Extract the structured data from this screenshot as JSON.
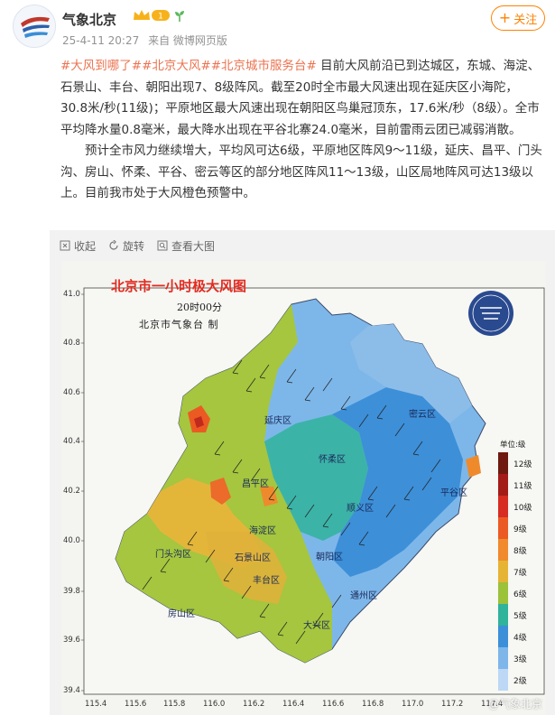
{
  "post": {
    "author": "气象北京",
    "badge_level": "1",
    "timestamp": "25-4-11 20:27",
    "source": "来自 微博网页版",
    "follow_label": "关注",
    "tags": [
      "#大风到哪了#",
      "#北京大风#",
      "#北京城市服务台#"
    ],
    "paragraph1_text": "目前大风前沿已到达城区，东城、海淀、石景山、丰台、朝阳出现7、8级阵风。截至20时全市最大风速出现在延庆区小海陀， 30.8米/秒(11级)；平原地区最大风速出现在朝阳区鸟巢冠顶东，17.6米/秒（8级）。全市平均降水量0.8毫米，最大降水出现在平谷北寨24.0毫米，目前雷雨云团已减弱消散。",
    "paragraph2": "预计全市风力继续增大，平均风可达6级，平原地区阵风9～11级，延庆、昌平、门头沟、房山、怀柔、平谷、密云等区的部分地区阵风11～13级，山区局地阵风可达13级以上。目前我市处于大风橙色预警中。"
  },
  "toolbar": {
    "collapse": "收起",
    "rotate": "旋转",
    "view_large": "查看大图"
  },
  "map": {
    "title": "北京市一小时极大风图",
    "time": "20时00分",
    "issuer": "北京市气象台  制",
    "logo_text": "北京市气象台",
    "watermark": "@气象北京",
    "legend_title": "单位:级",
    "legend": [
      {
        "label": "12级",
        "color": "#6e1a10"
      },
      {
        "label": "11级",
        "color": "#a31c18"
      },
      {
        "label": "10级",
        "color": "#d62c22"
      },
      {
        "label": "9级",
        "color": "#ec5a23"
      },
      {
        "label": "8级",
        "color": "#f08a2c"
      },
      {
        "label": "7级",
        "color": "#e6b434"
      },
      {
        "label": "6级",
        "color": "#9cc23a"
      },
      {
        "label": "5级",
        "color": "#2fb39a"
      },
      {
        "label": "4级",
        "color": "#3b8fd8"
      },
      {
        "label": "3级",
        "color": "#7eb6ea"
      },
      {
        "label": "2级",
        "color": "#bcd8f4"
      }
    ],
    "districts": [
      {
        "id": "yanqing",
        "name": "延庆区"
      },
      {
        "id": "huairou",
        "name": "怀柔区"
      },
      {
        "id": "miyun",
        "name": "密云区"
      },
      {
        "id": "pinggu",
        "name": "平谷区"
      },
      {
        "id": "changping",
        "name": "昌平区"
      },
      {
        "id": "shunyi",
        "name": "顺义区"
      },
      {
        "id": "mentougou",
        "name": "门头沟区"
      },
      {
        "id": "haidian",
        "name": "海淀区"
      },
      {
        "id": "shijingshan",
        "name": "石景山区"
      },
      {
        "id": "chaoyang",
        "name": "朝阳区"
      },
      {
        "id": "fengtai",
        "name": "丰台区"
      },
      {
        "id": "tongzhou",
        "name": "通州区"
      },
      {
        "id": "fangshan",
        "name": "房山区"
      },
      {
        "id": "daxing",
        "name": "大兴区"
      }
    ],
    "y_ticks": [
      "41.0",
      "40.8",
      "40.6",
      "40.4",
      "40.2",
      "40.0",
      "39.8",
      "39.6",
      "39.4"
    ],
    "x_ticks": [
      "115.4",
      "115.6",
      "115.8",
      "116.0",
      "116.2",
      "116.4",
      "116.6",
      "116.8",
      "117.0",
      "117.2",
      "117.4"
    ]
  }
}
